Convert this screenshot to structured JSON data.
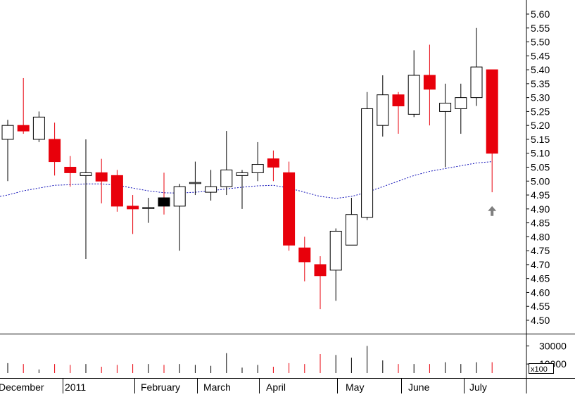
{
  "chart_data": {
    "type": "candlestick",
    "y_ticks": [
      "5.60",
      "5.55",
      "5.50",
      "5.45",
      "5.40",
      "5.35",
      "5.30",
      "5.25",
      "5.20",
      "5.15",
      "5.10",
      "5.05",
      "5.00",
      "4.95",
      "4.90",
      "4.85",
      "4.80",
      "4.75",
      "4.70",
      "4.65",
      "4.60",
      "4.55",
      "4.50"
    ],
    "ylim": [
      4.46,
      5.63
    ],
    "volume_ticks": [
      "30000",
      "10000"
    ],
    "volume_unit": "x100",
    "volume_max": 42000,
    "x_labels": [
      {
        "text": "December",
        "at": -0.5
      },
      {
        "text": "2011",
        "at": 3.5
      },
      {
        "text": "February",
        "at": 8.4
      },
      {
        "text": "March",
        "at": 12.4
      },
      {
        "text": "April",
        "at": 16.4
      },
      {
        "text": "May",
        "at": 21.5
      },
      {
        "text": "June",
        "at": 25.5
      },
      {
        "text": "July",
        "at": 29.4
      }
    ],
    "month_separators": [
      3.5,
      8.1,
      12.1,
      16.1,
      21.1,
      25.2,
      29.2
    ],
    "candles": [
      {
        "open": 5.15,
        "high": 5.22,
        "low": 5.0,
        "close": 5.2,
        "volume": 11000
      },
      {
        "open": 5.2,
        "high": 5.37,
        "low": 5.17,
        "close": 5.18,
        "volume": 10000
      },
      {
        "open": 5.15,
        "high": 5.25,
        "low": 5.14,
        "close": 5.23,
        "volume": 4000
      },
      {
        "open": 5.15,
        "high": 5.21,
        "low": 5.02,
        "close": 5.07,
        "volume": 10000
      },
      {
        "open": 5.05,
        "high": 5.09,
        "low": 4.98,
        "close": 5.03,
        "volume": 9000
      },
      {
        "open": 5.02,
        "high": 5.15,
        "low": 4.72,
        "close": 5.03,
        "volume": 10000
      },
      {
        "open": 5.03,
        "high": 5.08,
        "low": 4.92,
        "close": 5.0,
        "volume": 7000
      },
      {
        "open": 5.02,
        "high": 5.04,
        "low": 4.89,
        "close": 4.91,
        "volume": 9000
      },
      {
        "open": 4.91,
        "high": 4.95,
        "low": 4.81,
        "close": 4.9,
        "volume": 10000
      },
      {
        "open": 4.905,
        "high": 4.94,
        "low": 4.85,
        "close": 4.905,
        "volume": 10000
      },
      {
        "open": 4.94,
        "high": 5.03,
        "low": 4.88,
        "close": 4.91,
        "volume": 9000
      },
      {
        "open": 4.91,
        "high": 4.99,
        "low": 4.75,
        "close": 4.98,
        "volume": 10000
      },
      {
        "open": 4.995,
        "high": 5.07,
        "low": 4.95,
        "close": 4.995,
        "volume": 9000
      },
      {
        "open": 4.96,
        "high": 5.04,
        "low": 4.93,
        "close": 4.98,
        "volume": 8000
      },
      {
        "open": 4.98,
        "high": 5.18,
        "low": 4.95,
        "close": 5.04,
        "volume": 22000
      },
      {
        "open": 5.02,
        "high": 5.04,
        "low": 4.9,
        "close": 5.03,
        "volume": 6000
      },
      {
        "open": 5.03,
        "high": 5.14,
        "low": 5.0,
        "close": 5.06,
        "volume": 9000
      },
      {
        "open": 5.08,
        "high": 5.11,
        "low": 5.0,
        "close": 5.05,
        "volume": 7000
      },
      {
        "open": 5.03,
        "high": 5.07,
        "low": 4.75,
        "close": 4.77,
        "volume": 11000
      },
      {
        "open": 4.76,
        "high": 4.8,
        "low": 4.64,
        "close": 4.71,
        "volume": 10000
      },
      {
        "open": 4.7,
        "high": 4.73,
        "low": 4.54,
        "close": 4.66,
        "volume": 21000
      },
      {
        "open": 4.68,
        "high": 4.83,
        "low": 4.57,
        "close": 4.82,
        "volume": 20000
      },
      {
        "open": 4.77,
        "high": 4.94,
        "low": 4.77,
        "close": 4.88,
        "volume": 17000
      },
      {
        "open": 4.87,
        "high": 5.32,
        "low": 4.86,
        "close": 5.26,
        "volume": 30000
      },
      {
        "open": 5.2,
        "high": 5.38,
        "low": 5.16,
        "close": 5.31,
        "volume": 14000
      },
      {
        "open": 5.31,
        "high": 5.32,
        "low": 5.17,
        "close": 5.27,
        "volume": 10000
      },
      {
        "open": 5.24,
        "high": 5.47,
        "low": 5.23,
        "close": 5.38,
        "volume": 10000
      },
      {
        "open": 5.38,
        "high": 5.49,
        "low": 5.2,
        "close": 5.33,
        "volume": 10000
      },
      {
        "open": 5.25,
        "high": 5.35,
        "low": 5.05,
        "close": 5.28,
        "volume": 12000
      },
      {
        "open": 5.26,
        "high": 5.35,
        "low": 5.17,
        "close": 5.3,
        "volume": 10000
      },
      {
        "open": 5.3,
        "high": 5.55,
        "low": 5.27,
        "close": 5.41,
        "volume": 12000
      },
      {
        "open": 5.4,
        "high": 5.4,
        "low": 4.96,
        "close": 5.1,
        "volume": 12000
      }
    ],
    "moving_average": [
      4.95,
      4.965,
      4.975,
      4.985,
      4.987,
      4.99,
      4.99,
      4.985,
      4.975,
      4.965,
      4.958,
      4.957,
      4.96,
      4.965,
      4.972,
      4.978,
      4.983,
      4.985,
      4.975,
      4.96,
      4.945,
      4.938,
      4.945,
      4.96,
      4.98,
      5.0,
      5.02,
      5.035,
      5.045,
      5.055,
      5.065,
      5.07
    ],
    "arrow_marker": {
      "candle": 31,
      "price": 4.89
    },
    "colors": {
      "down": "#e8000b",
      "up_fill": "#ffffff",
      "up_stroke": "#000000",
      "solid_up": "#000000",
      "moving_average": "#1010b8",
      "grid": "#000000",
      "arrow": "#7f7f7f"
    }
  }
}
